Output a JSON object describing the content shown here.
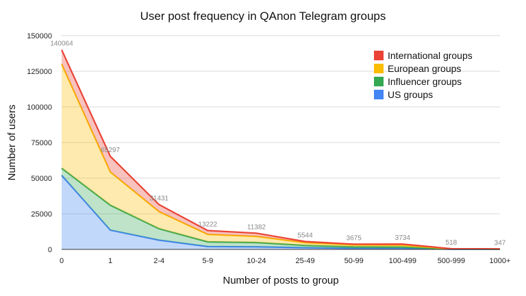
{
  "chart_data": {
    "type": "area",
    "title": "User post frequency in QAnon Telegram groups",
    "xlabel": "Number of posts to group",
    "ylabel": "Number of users",
    "ylim": [
      0,
      150000
    ],
    "yticks": [
      "0",
      "25000",
      "50000",
      "75000",
      "100000",
      "125000",
      "150000"
    ],
    "categories": [
      "0",
      "1",
      "2-4",
      "5-9",
      "10-24",
      "25-49",
      "50-99",
      "100-499",
      "500-999",
      "1000+"
    ],
    "stacked": true,
    "grid": true,
    "legend_position": "top-right",
    "series": [
      {
        "name": "US groups",
        "color": "#4285f4",
        "values": [
          52000,
          13500,
          6500,
          2000,
          1800,
          1200,
          800,
          800,
          100,
          100
        ]
      },
      {
        "name": "Influencer groups",
        "color": "#34a853",
        "values": [
          5000,
          17500,
          8000,
          3300,
          3000,
          1600,
          1000,
          900,
          100,
          50
        ]
      },
      {
        "name": "European groups",
        "color": "#fbbc04",
        "values": [
          73000,
          23297,
          12000,
          5200,
          4300,
          1900,
          1300,
          1300,
          200,
          100
        ]
      },
      {
        "name": "International groups",
        "color": "#ea4335",
        "values": [
          10064,
          11000,
          4931,
          2722,
          2282,
          844,
          575,
          734,
          118,
          97
        ]
      }
    ],
    "totals": [
      140064,
      65297,
      31431,
      13222,
      11382,
      5544,
      3675,
      3734,
      518,
      347
    ],
    "annotations": [
      "140064",
      "65297",
      "31431",
      "13222",
      "11382",
      "5544",
      "3675",
      "3734",
      "518",
      "347"
    ]
  }
}
